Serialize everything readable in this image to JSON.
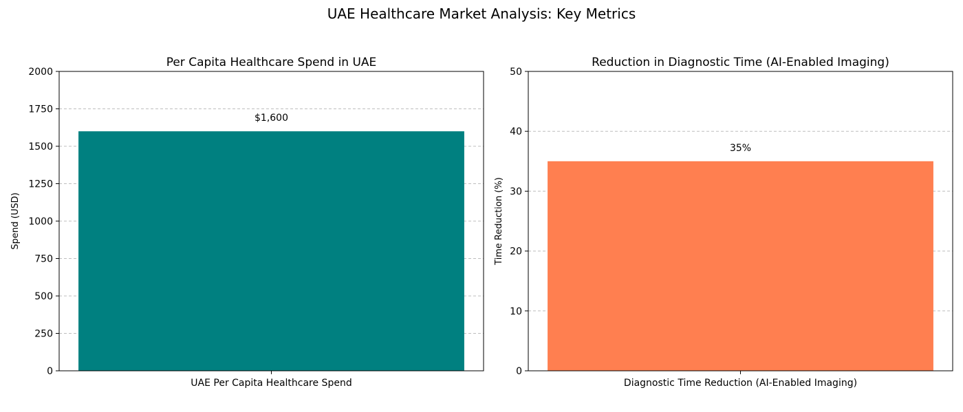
{
  "figure": {
    "title": "UAE Healthcare Market Analysis: Key Metrics"
  },
  "chart_data": [
    {
      "type": "bar",
      "title": "Per Capita Healthcare Spend in UAE",
      "categories": [
        "UAE Per Capita Healthcare Spend"
      ],
      "values": [
        1600
      ],
      "data_labels": [
        "$1,600"
      ],
      "xlabel": "",
      "ylabel": "Spend (USD)",
      "ylim": [
        0,
        2000
      ],
      "yticks": [
        0,
        250,
        500,
        750,
        1000,
        1250,
        1500,
        1750,
        2000
      ],
      "color": "#008080",
      "grid": "y-dashed",
      "legend": "none"
    },
    {
      "type": "bar",
      "title": "Reduction in Diagnostic Time (AI-Enabled Imaging)",
      "categories": [
        "Diagnostic Time Reduction (AI-Enabled Imaging)"
      ],
      "values": [
        35
      ],
      "data_labels": [
        "35%"
      ],
      "xlabel": "",
      "ylabel": "Time Reduction (%)",
      "ylim": [
        0,
        50
      ],
      "yticks": [
        0,
        10,
        20,
        30,
        40,
        50
      ],
      "color": "#ff7f50",
      "grid": "y-dashed",
      "legend": "none"
    }
  ]
}
